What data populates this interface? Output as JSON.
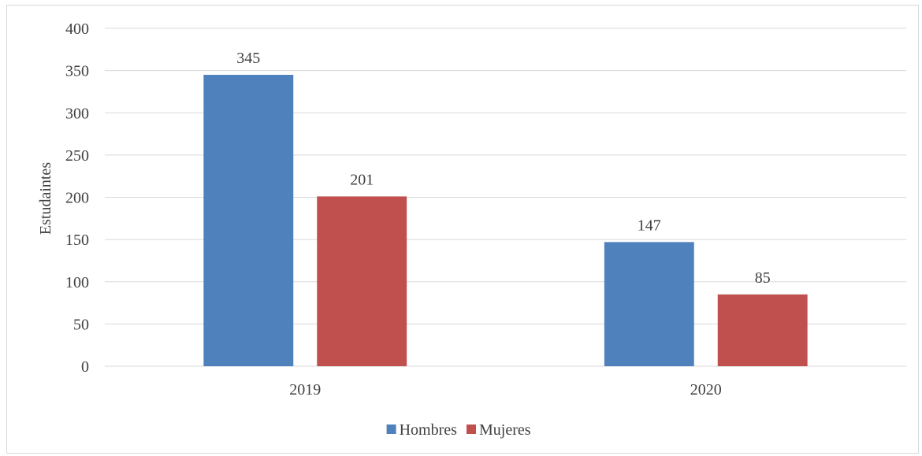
{
  "chart_data": {
    "type": "bar",
    "title": "",
    "xlabel": "",
    "ylabel": "Estudaintes",
    "categories": [
      "2019",
      "2020"
    ],
    "series": [
      {
        "name": "Hombres",
        "values": [
          345,
          147
        ],
        "color": "#4f81bd"
      },
      {
        "name": "Mujeres",
        "values": [
          201,
          85
        ],
        "color": "#c0504d"
      }
    ],
    "ylim": [
      0,
      400
    ],
    "yticks": [
      "0",
      "50",
      "100",
      "150",
      "200",
      "250",
      "300",
      "350",
      "400"
    ],
    "data_labels": true,
    "grid": "horizontal",
    "legend_position": "bottom"
  }
}
